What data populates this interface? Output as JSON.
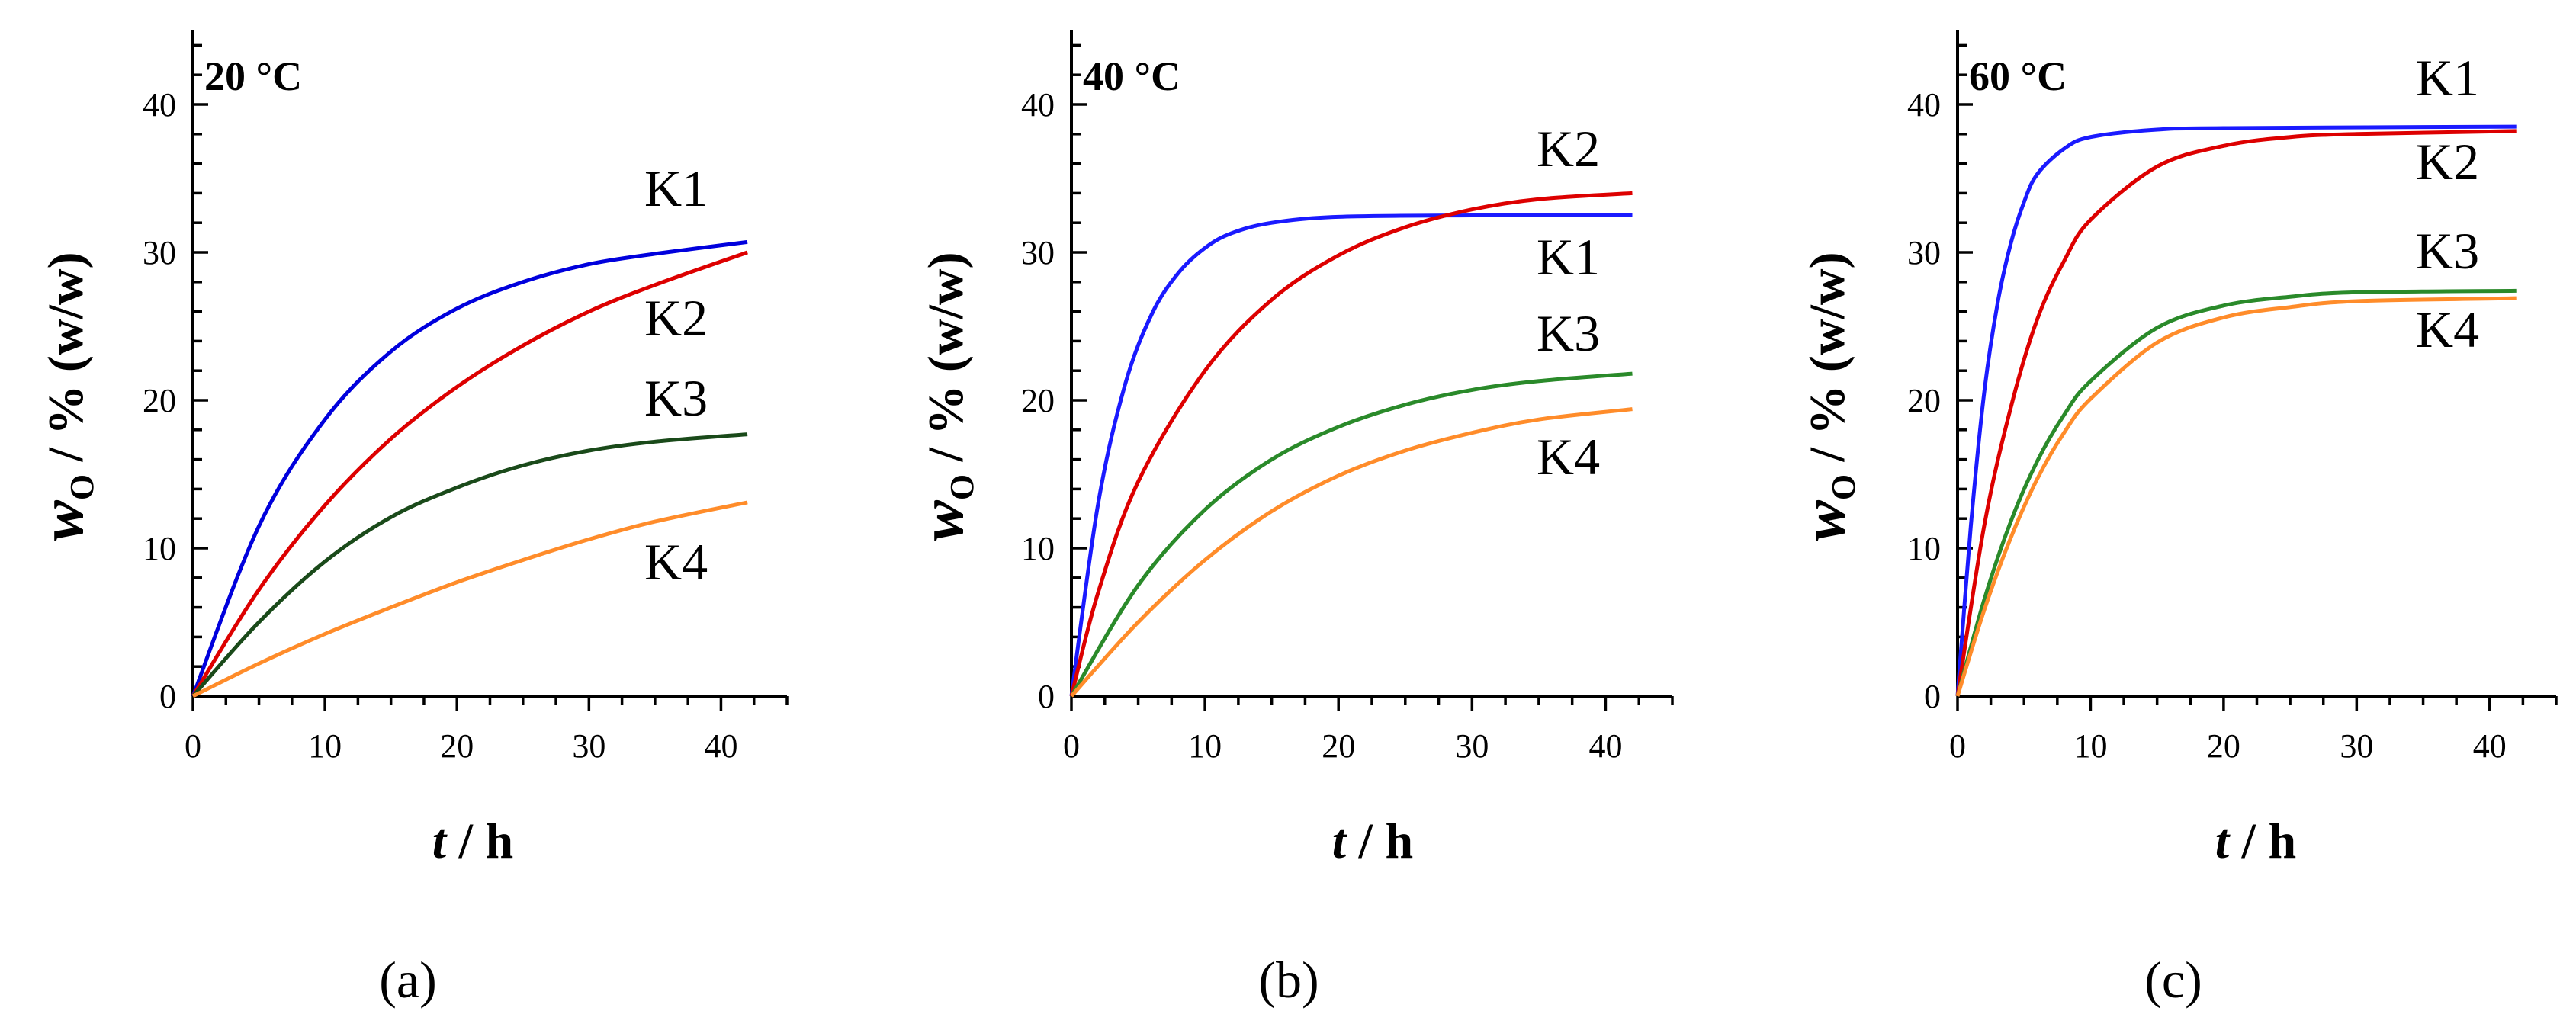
{
  "chart_data": [
    {
      "type": "line",
      "title": "20 °C",
      "caption": "(a)",
      "xlabel": {
        "var": "t",
        "unit": "h"
      },
      "ylabel": {
        "var": "w",
        "sub": "O",
        "unit": "% (w/w)"
      },
      "xlim": [
        0,
        45
      ],
      "ylim": [
        0,
        45
      ],
      "xticks": [
        0,
        10,
        20,
        30,
        40
      ],
      "yticks": [
        0,
        10,
        20,
        30,
        40
      ],
      "series": [
        {
          "name": "K1",
          "color": "#0000dd",
          "x": [
            0,
            5,
            10,
            15,
            20,
            25,
            30,
            35,
            42
          ],
          "y": [
            0,
            11.5,
            18.7,
            23.3,
            26.2,
            28.0,
            29.2,
            29.9,
            30.7
          ]
        },
        {
          "name": "K2",
          "color": "#dd0000",
          "x": [
            0,
            5,
            10,
            15,
            20,
            25,
            30,
            35,
            42
          ],
          "y": [
            0,
            7.2,
            12.9,
            17.4,
            20.9,
            23.7,
            26.0,
            27.8,
            30.0
          ]
        },
        {
          "name": "K3",
          "color": "#1a4a1a",
          "x": [
            0,
            5,
            10,
            15,
            20,
            25,
            30,
            35,
            42
          ],
          "y": [
            0,
            5.0,
            9.1,
            12.1,
            14.1,
            15.6,
            16.6,
            17.2,
            17.7
          ]
        },
        {
          "name": "K4",
          "color": "#ff8c2a",
          "x": [
            0,
            5,
            10,
            15,
            20,
            25,
            30,
            35,
            42
          ],
          "y": [
            0,
            2.2,
            4.2,
            6.0,
            7.7,
            9.2,
            10.6,
            11.8,
            13.1
          ]
        }
      ]
    },
    {
      "type": "line",
      "title": "40 °C",
      "caption": "(b)",
      "xlabel": {
        "var": "t",
        "unit": "h"
      },
      "ylabel": {
        "var": "w",
        "sub": "O",
        "unit": "% (w/w)"
      },
      "xlim": [
        0,
        45
      ],
      "ylim": [
        0,
        45
      ],
      "xticks": [
        0,
        10,
        20,
        30,
        40
      ],
      "yticks": [
        0,
        10,
        20,
        30,
        40
      ],
      "series": [
        {
          "name": "K1",
          "color": "#1a1aff",
          "x": [
            0,
            2,
            4,
            6,
            8,
            10,
            12,
            15,
            20,
            30,
            42
          ],
          "y": [
            0,
            13.0,
            21.0,
            25.8,
            28.6,
            30.3,
            31.3,
            32.0,
            32.4,
            32.5,
            32.5
          ]
        },
        {
          "name": "K2",
          "color": "#dd0000",
          "x": [
            0,
            2,
            5,
            10,
            15,
            20,
            25,
            30,
            35,
            42
          ],
          "y": [
            0,
            7.0,
            14.5,
            22.0,
            26.8,
            29.8,
            31.7,
            32.9,
            33.6,
            34.0
          ]
        },
        {
          "name": "K3",
          "color": "#2a8a2a",
          "x": [
            0,
            5,
            10,
            15,
            20,
            25,
            30,
            35,
            42
          ],
          "y": [
            0,
            7.5,
            12.6,
            16.0,
            18.2,
            19.7,
            20.7,
            21.3,
            21.8
          ]
        },
        {
          "name": "K4",
          "color": "#ff8c2a",
          "x": [
            0,
            5,
            10,
            15,
            20,
            25,
            30,
            35,
            42
          ],
          "y": [
            0,
            5.0,
            9.2,
            12.5,
            14.9,
            16.6,
            17.8,
            18.7,
            19.4
          ]
        }
      ]
    },
    {
      "type": "line",
      "title": "60 °C",
      "caption": "(c)",
      "xlabel": {
        "var": "t",
        "unit": "h"
      },
      "ylabel": {
        "var": "w",
        "sub": "O",
        "unit": "% (w/w)"
      },
      "xlim": [
        0,
        45
      ],
      "ylim": [
        0,
        45
      ],
      "xticks": [
        0,
        10,
        20,
        30,
        40
      ],
      "yticks": [
        0,
        10,
        20,
        30,
        40
      ],
      "series": [
        {
          "name": "K1",
          "color": "#1a1aff",
          "x": [
            0,
            1,
            2,
            3,
            4,
            5,
            6,
            8,
            10,
            15,
            20,
            42
          ],
          "y": [
            0,
            11.5,
            20.5,
            26.5,
            30.6,
            33.4,
            35.3,
            37.0,
            37.8,
            38.3,
            38.4,
            38.5
          ]
        },
        {
          "name": "K2",
          "color": "#dd0000",
          "x": [
            0,
            2,
            4,
            6,
            8,
            10,
            15,
            20,
            25,
            30,
            42
          ],
          "y": [
            0,
            11.5,
            19.5,
            25.5,
            29.4,
            32.2,
            35.8,
            37.2,
            37.8,
            38.0,
            38.2
          ]
        },
        {
          "name": "K3",
          "color": "#2a8a2a",
          "x": [
            0,
            2,
            4,
            6,
            8,
            10,
            15,
            20,
            25,
            30,
            42
          ],
          "y": [
            0,
            6.5,
            11.8,
            15.9,
            19.0,
            21.3,
            24.9,
            26.4,
            27.0,
            27.3,
            27.4
          ]
        },
        {
          "name": "K4",
          "color": "#ff8c2a",
          "x": [
            0,
            2,
            4,
            6,
            8,
            10,
            15,
            20,
            25,
            30,
            42
          ],
          "y": [
            0,
            5.8,
            10.7,
            14.7,
            17.8,
            20.1,
            23.9,
            25.6,
            26.3,
            26.7,
            26.9
          ]
        }
      ]
    }
  ]
}
